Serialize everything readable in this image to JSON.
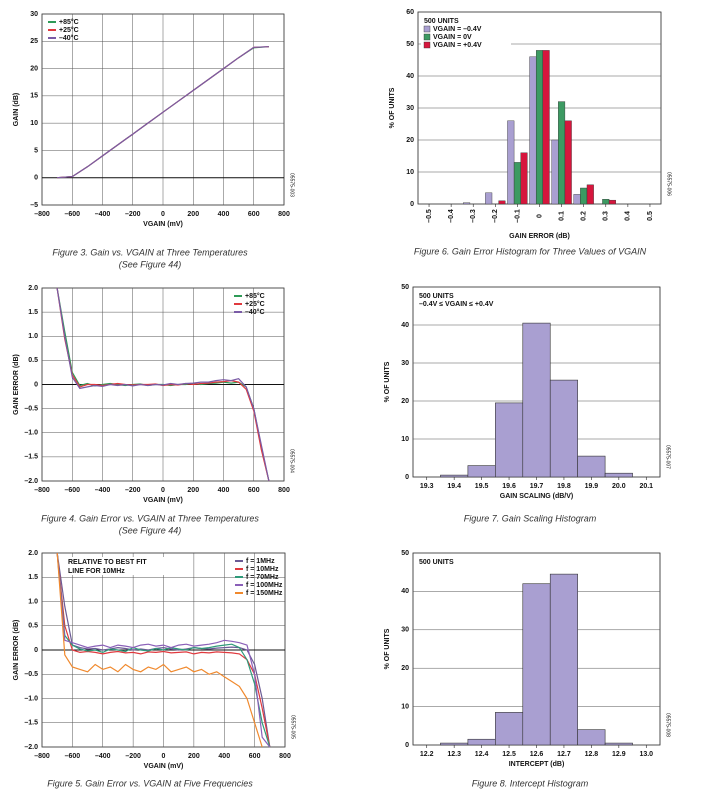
{
  "chart_data": [
    {
      "type": "line",
      "caption": "Figure 3. Gain vs. VGAIN at Three Temperatures",
      "caption_note": "(See Figure 44)",
      "code": "05575-003",
      "x_label": "VGAIN (mV)",
      "y_label": "GAIN (dB)",
      "legend": "upper left",
      "grid": true,
      "xlim": [
        -800,
        800
      ],
      "xticks": [
        {
          "value": -800,
          "label": "–800"
        },
        {
          "value": -600,
          "label": "–600"
        },
        {
          "value": -400,
          "label": "–400"
        },
        {
          "value": -200,
          "label": "–200"
        },
        0,
        200,
        400,
        600,
        800
      ],
      "ylim": [
        -5,
        30
      ],
      "yticks": [
        30,
        25,
        20,
        15,
        10,
        5,
        0,
        {
          "value": -5,
          "label": "–5"
        }
      ],
      "x": [
        -700,
        -600,
        -500,
        -400,
        -300,
        -200,
        -100,
        0,
        100,
        200,
        300,
        400,
        500,
        600,
        700
      ],
      "series": [
        {
          "name": "+85°C",
          "color": "#2e9b57",
          "values": [
            0,
            0.2,
            2,
            4,
            6,
            8,
            10,
            12,
            14,
            16,
            18,
            20,
            22,
            23.8,
            24
          ]
        },
        {
          "name": "+25°C",
          "color": "#e0393e",
          "values": [
            0,
            0.2,
            2,
            4,
            6,
            8,
            10,
            12,
            14,
            16,
            18,
            20,
            22,
            23.9,
            24
          ]
        },
        {
          "name": "–40°C",
          "color": "#7a5ba6",
          "values": [
            0,
            0.2,
            2,
            4,
            6,
            8,
            10,
            12,
            14,
            16,
            18,
            20,
            22,
            23.9,
            24
          ]
        }
      ]
    },
    {
      "type": "line",
      "caption": "Figure 4. Gain Error vs. VGAIN at Three Temperatures",
      "caption_note": "(See Figure 44)",
      "code": "05575-004",
      "x_label": "VGAIN (mV)",
      "y_label": "GAIN ERROR (dB)",
      "legend": "upper right",
      "grid": true,
      "xlim": [
        -800,
        800
      ],
      "xticks": [
        {
          "value": -800,
          "label": "–800"
        },
        {
          "value": -600,
          "label": "–600"
        },
        {
          "value": -400,
          "label": "–400"
        },
        {
          "value": -200,
          "label": "–200"
        },
        0,
        200,
        400,
        600,
        800
      ],
      "ylim": [
        -2,
        2
      ],
      "yticks": [
        {
          "value": 2,
          "label": "2.0"
        },
        1.5,
        {
          "value": 1,
          "label": "1.0"
        },
        0.5,
        0,
        {
          "value": -0.5,
          "label": "–0.5"
        },
        {
          "value": -1,
          "label": "–1.0"
        },
        {
          "value": -1.5,
          "label": "–1.5"
        },
        {
          "value": -2,
          "label": "–2.0"
        }
      ],
      "x": [
        -700,
        -650,
        -600,
        -550,
        -500,
        -450,
        -400,
        -350,
        -300,
        -250,
        -200,
        -150,
        -100,
        -50,
        0,
        50,
        100,
        150,
        200,
        250,
        300,
        350,
        400,
        450,
        500,
        550,
        600,
        650,
        700
      ],
      "series": [
        {
          "name": "+85°C",
          "color": "#2e9b57",
          "values": [
            2.0,
            1.1,
            0.25,
            -0.02,
            0.02,
            -0.03,
            0.0,
            0.02,
            0.0,
            -0.02,
            0.0,
            0.01,
            -0.02,
            0.0,
            0.0,
            -0.02,
            0.0,
            0.0,
            0.02,
            0.0,
            0.02,
            0.03,
            0.05,
            0.03,
            0.05,
            -0.05,
            -0.5,
            -1.3,
            -2.0
          ]
        },
        {
          "name": "+25°C",
          "color": "#e0393e",
          "values": [
            2.0,
            0.95,
            0.2,
            -0.05,
            0.0,
            0.0,
            -0.02,
            0.0,
            0.02,
            0.0,
            -0.01,
            0.0,
            0.0,
            0.01,
            -0.02,
            0.0,
            -0.01,
            0.02,
            0.0,
            0.02,
            0.03,
            0.05,
            0.06,
            0.08,
            0.05,
            -0.1,
            -0.55,
            -1.35,
            -2.0
          ]
        },
        {
          "name": "–40°C",
          "color": "#7a5ba6",
          "values": [
            2.0,
            1.0,
            0.15,
            -0.08,
            -0.05,
            -0.02,
            -0.04,
            0.0,
            -0.02,
            0.0,
            -0.03,
            0.0,
            -0.02,
            0.0,
            -0.01,
            0.02,
            0.0,
            0.02,
            0.03,
            0.05,
            0.05,
            0.08,
            0.1,
            0.08,
            0.12,
            -0.05,
            -0.5,
            -1.25,
            -2.0
          ]
        }
      ]
    },
    {
      "type": "line",
      "caption": "Figure 5. Gain Error vs. VGAIN at Five Frequencies",
      "code": "05575-005",
      "x_label": "VGAIN (mV)",
      "y_label": "GAIN ERROR (dB)",
      "legend": "upper right",
      "grid": true,
      "annotation": [
        "RELATIVE TO BEST FIT",
        "LINE FOR 10MHz"
      ],
      "xlim": [
        -800,
        800
      ],
      "xticks": [
        {
          "value": -800,
          "label": "–800"
        },
        {
          "value": -600,
          "label": "–600"
        },
        {
          "value": -400,
          "label": "–400"
        },
        {
          "value": -200,
          "label": "–200"
        },
        0,
        200,
        400,
        600,
        800
      ],
      "ylim": [
        -2,
        2
      ],
      "yticks": [
        {
          "value": 2,
          "label": "2.0"
        },
        1.5,
        {
          "value": 1,
          "label": "1.0"
        },
        0.5,
        0,
        {
          "value": -0.5,
          "label": "–0.5"
        },
        {
          "value": -1,
          "label": "–1.0"
        },
        {
          "value": -1.5,
          "label": "–1.5"
        },
        {
          "value": -2,
          "label": "–2.0"
        }
      ],
      "x": [
        -700,
        -650,
        -600,
        -550,
        -500,
        -450,
        -400,
        -350,
        -300,
        -250,
        -200,
        -150,
        -100,
        -50,
        0,
        50,
        100,
        150,
        200,
        250,
        300,
        350,
        400,
        450,
        500,
        550,
        600,
        650,
        700
      ],
      "series": [
        {
          "name": "f = 1MHz",
          "color": "#6b5b95",
          "values": [
            2.0,
            0.9,
            0.1,
            0.05,
            0.02,
            0.03,
            0.0,
            0.02,
            0.05,
            0.03,
            0.0,
            0.02,
            0.0,
            0.03,
            0.05,
            0.02,
            0.0,
            0.02,
            0.05,
            0.03,
            0.02,
            0.04,
            0.05,
            0.06,
            0.05,
            0.0,
            -0.3,
            -1.0,
            -2.0
          ]
        },
        {
          "name": "f = 10MHz",
          "color": "#e0393e",
          "values": [
            2.0,
            0.5,
            0.0,
            -0.05,
            -0.03,
            -0.05,
            -0.08,
            -0.05,
            -0.03,
            -0.06,
            -0.05,
            -0.08,
            -0.04,
            -0.05,
            -0.03,
            -0.06,
            -0.05,
            -0.04,
            -0.08,
            -0.05,
            -0.06,
            -0.04,
            -0.05,
            -0.06,
            -0.08,
            -0.2,
            -0.5,
            -1.2,
            -2.0
          ]
        },
        {
          "name": "f = 70MHz",
          "color": "#2e9b7a",
          "values": [
            2.0,
            0.3,
            0.1,
            0.02,
            -0.02,
            0.0,
            -0.05,
            0.02,
            0.0,
            -0.03,
            0.05,
            0.0,
            -0.02,
            0.03,
            0.0,
            0.05,
            0.02,
            0.0,
            0.05,
            0.03,
            0.05,
            0.08,
            0.1,
            0.12,
            0.05,
            -0.2,
            -0.7,
            -1.5,
            -2.0
          ]
        },
        {
          "name": "f = 100MHz",
          "color": "#8a5fb8",
          "values": [
            2.0,
            0.2,
            0.15,
            0.1,
            0.05,
            0.08,
            0.1,
            0.05,
            0.1,
            0.08,
            0.05,
            0.1,
            0.12,
            0.08,
            0.1,
            0.05,
            0.1,
            0.12,
            0.08,
            0.1,
            0.12,
            0.15,
            0.2,
            0.18,
            0.15,
            0.1,
            -0.5,
            -1.8,
            -2.0
          ]
        },
        {
          "name": "f = 150MHz",
          "color": "#f0892d",
          "values": [
            2.0,
            -0.1,
            -0.35,
            -0.4,
            -0.45,
            -0.3,
            -0.4,
            -0.35,
            -0.45,
            -0.3,
            -0.4,
            -0.45,
            -0.35,
            -0.4,
            -0.3,
            -0.45,
            -0.4,
            -0.35,
            -0.45,
            -0.4,
            -0.5,
            -0.45,
            -0.55,
            -0.65,
            -0.75,
            -1.0,
            -1.5,
            -2.0,
            null
          ]
        }
      ]
    },
    {
      "type": "grouped_bar",
      "caption": "Figure 6. Gain Error Histogram for Three Values of VGAIN",
      "code": "05575-006",
      "x_label": "GAIN ERROR (dB)",
      "y_label": "% OF UNITS",
      "legend": "upper left",
      "legend_title": "500 UNITS",
      "grid": true,
      "categories": [
        "–0.5",
        "–0.4",
        "–0.3",
        "–0.2",
        "–0.1",
        "0",
        "0.1",
        "0.2",
        "0.3",
        "0.4",
        "0.5"
      ],
      "ylim": [
        0,
        60
      ],
      "yticks": [
        60,
        50,
        40,
        30,
        20,
        10,
        0
      ],
      "series": [
        {
          "name": "VGAIN = –0.4V",
          "color": "#a99fd1",
          "values": [
            0,
            0,
            0.4,
            3.5,
            26,
            46,
            20,
            3,
            0,
            0,
            0
          ]
        },
        {
          "name": "VGAIN = 0V",
          "color": "#3c9a62",
          "values": [
            0,
            0,
            0,
            0,
            13,
            48,
            32,
            5,
            1.5,
            0,
            0
          ]
        },
        {
          "name": "VGAIN = +0.4V",
          "color": "#d6163d",
          "values": [
            0,
            0,
            0,
            1,
            16,
            48,
            26,
            6,
            1.2,
            0,
            0
          ]
        }
      ]
    },
    {
      "type": "bar",
      "caption": "Figure 7. Gain Scaling Histogram",
      "code": "05575-007",
      "x_label": "GAIN SCALING (dB/V)",
      "y_label": "% OF UNITS",
      "legend_title": "500 UNITS",
      "annotation": [
        "–0.4V ≤ VGAIN ≤ +0.4V"
      ],
      "grid": true,
      "color": "#a99fd1",
      "categories": [
        "19.3",
        "19.4",
        "19.5",
        "19.6",
        "19.7",
        "19.8",
        "19.9",
        "20.0",
        "20.1"
      ],
      "values": [
        0,
        0.5,
        3,
        19.5,
        40.5,
        25.5,
        5.5,
        1,
        0
      ],
      "ylim": [
        0,
        50
      ],
      "yticks": [
        50,
        40,
        30,
        20,
        10,
        0
      ]
    },
    {
      "type": "bar",
      "caption": "Figure 8. Intercept Histogram",
      "code": "05575-008",
      "x_label": "INTERCEPT (dB)",
      "y_label": "% OF UNITS",
      "legend_title": "500 UNITS",
      "grid": true,
      "color": "#a99fd1",
      "categories": [
        "12.2",
        "12.3",
        "12.4",
        "12.5",
        "12.6",
        "12.7",
        "12.8",
        "12.9",
        "13.0"
      ],
      "values": [
        0,
        0.5,
        1.5,
        8.5,
        42,
        44.5,
        4,
        0.5,
        0
      ],
      "ylim": [
        0,
        50
      ],
      "yticks": [
        50,
        40,
        30,
        20,
        10,
        0
      ]
    }
  ]
}
